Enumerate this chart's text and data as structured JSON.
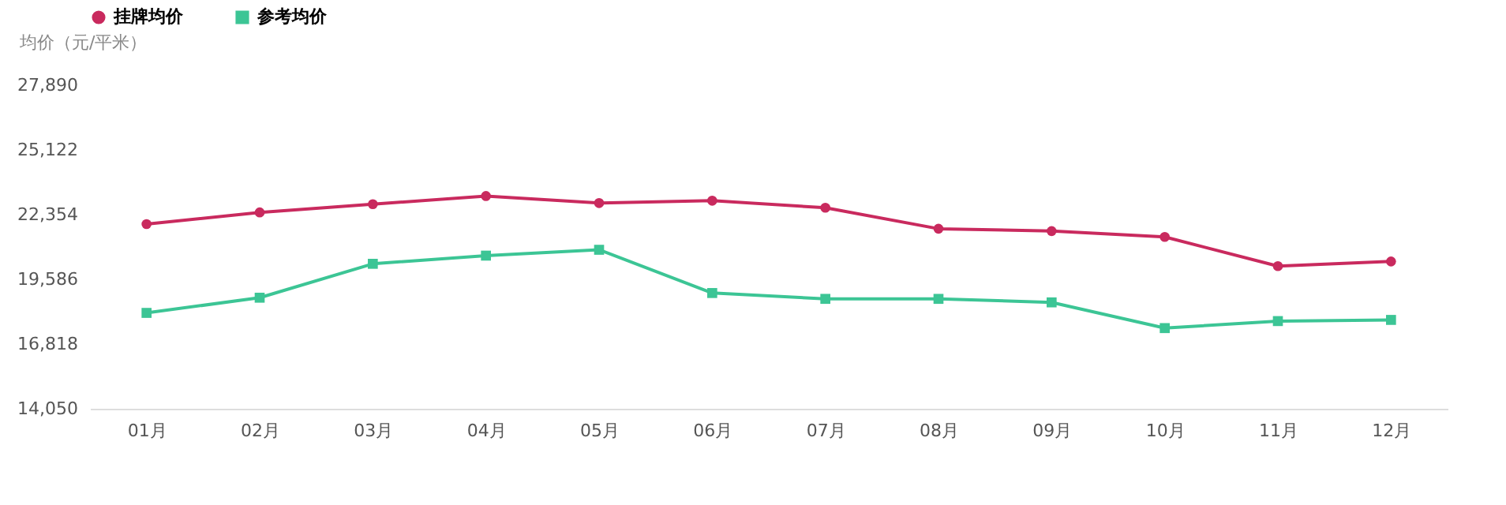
{
  "chart_data": {
    "type": "line",
    "ylabel": "均价（元/平米）",
    "categories": [
      "01月",
      "02月",
      "03月",
      "04月",
      "05月",
      "06月",
      "07月",
      "08月",
      "09月",
      "10月",
      "11月",
      "12月"
    ],
    "series": [
      {
        "name": "挂牌均价",
        "color": "#c92a5e",
        "marker": "circle",
        "values": [
          21950,
          22450,
          22800,
          23150,
          22850,
          22950,
          22650,
          21750,
          21650,
          21400,
          20150,
          20350
        ]
      },
      {
        "name": "参考均价",
        "color": "#3cc595",
        "marker": "square",
        "values": [
          18150,
          18800,
          20250,
          20600,
          20850,
          19000,
          18750,
          18750,
          18600,
          17500,
          17800,
          17850
        ]
      }
    ],
    "ylim": [
      14050,
      27890
    ],
    "yticks": [
      {
        "value": 14050,
        "label": "14,050"
      },
      {
        "value": 16818,
        "label": "16,818"
      },
      {
        "value": 19586,
        "label": "19,586"
      },
      {
        "value": 22354,
        "label": "22,354"
      },
      {
        "value": 25122,
        "label": "25,122"
      },
      {
        "value": 27890,
        "label": "27,890"
      }
    ],
    "grid": false,
    "legend": "top left",
    "line_style": "solid"
  }
}
